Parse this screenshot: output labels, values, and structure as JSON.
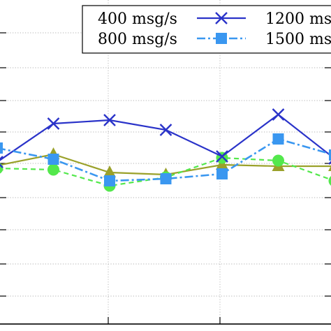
{
  "chart_data": {
    "type": "line",
    "title": "",
    "xlabel": "",
    "ylabel": "",
    "x": [
      0,
      1,
      2,
      3,
      4,
      5,
      6
    ],
    "ylim": [
      0,
      474
    ],
    "grid": true,
    "legend_position": "top-right",
    "series": [
      {
        "name": "400 msg/s",
        "color": "#9aa12a",
        "marker": "triangle",
        "linestyle": "solid",
        "values": [
          237,
          253,
          227,
          224,
          238,
          236,
          236
        ]
      },
      {
        "name": "800 msg/s",
        "color": "#53e84c",
        "marker": "circle",
        "linestyle": "dashed",
        "values": [
          233,
          231,
          208,
          220,
          248,
          244,
          215
        ]
      },
      {
        "name": "1200 msg/s",
        "color": "#2a33c9",
        "marker": "x",
        "linestyle": "solid",
        "values": [
          242,
          297,
          302,
          288,
          250,
          310,
          247
        ]
      },
      {
        "name": "1500 msg/s",
        "color": "#3a97f0",
        "marker": "square",
        "linestyle": "dashdot",
        "values": [
          262,
          246,
          215,
          218,
          225,
          275,
          252
        ]
      }
    ]
  },
  "legend": {
    "items": [
      {
        "label": "400 msg/s",
        "series": 0
      },
      {
        "label": "1200 msg/s",
        "series": 2
      },
      {
        "label": "800 msg/s",
        "series": 1
      },
      {
        "label": "1500 msg/s",
        "series": 3
      }
    ]
  }
}
